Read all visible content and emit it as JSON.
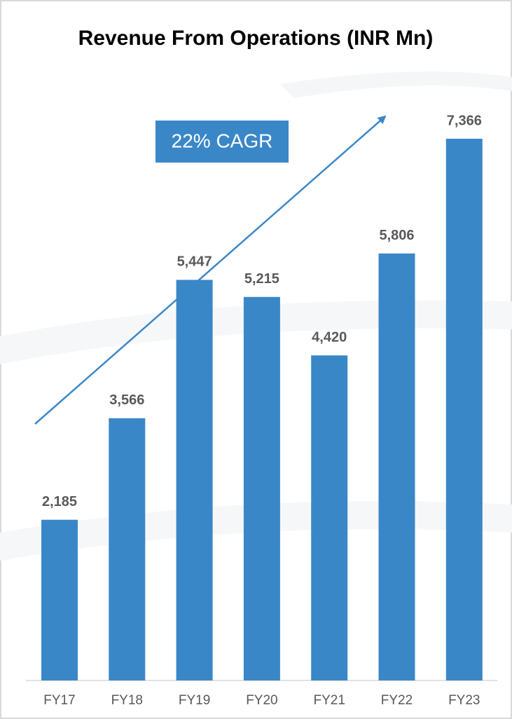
{
  "chart_data": {
    "type": "bar",
    "title": "Revenue From Operations (INR Mn)",
    "annotation": "22% CAGR",
    "categories": [
      "FY17",
      "FY18",
      "FY19",
      "FY20",
      "FY21",
      "FY22",
      "FY23"
    ],
    "values": [
      2185,
      3566,
      5447,
      5215,
      4420,
      5806,
      7366
    ],
    "value_labels": [
      "2,185",
      "3,566",
      "5,447",
      "5,215",
      "4,420",
      "5,806",
      "7,366"
    ],
    "color": "#3a87c8"
  }
}
